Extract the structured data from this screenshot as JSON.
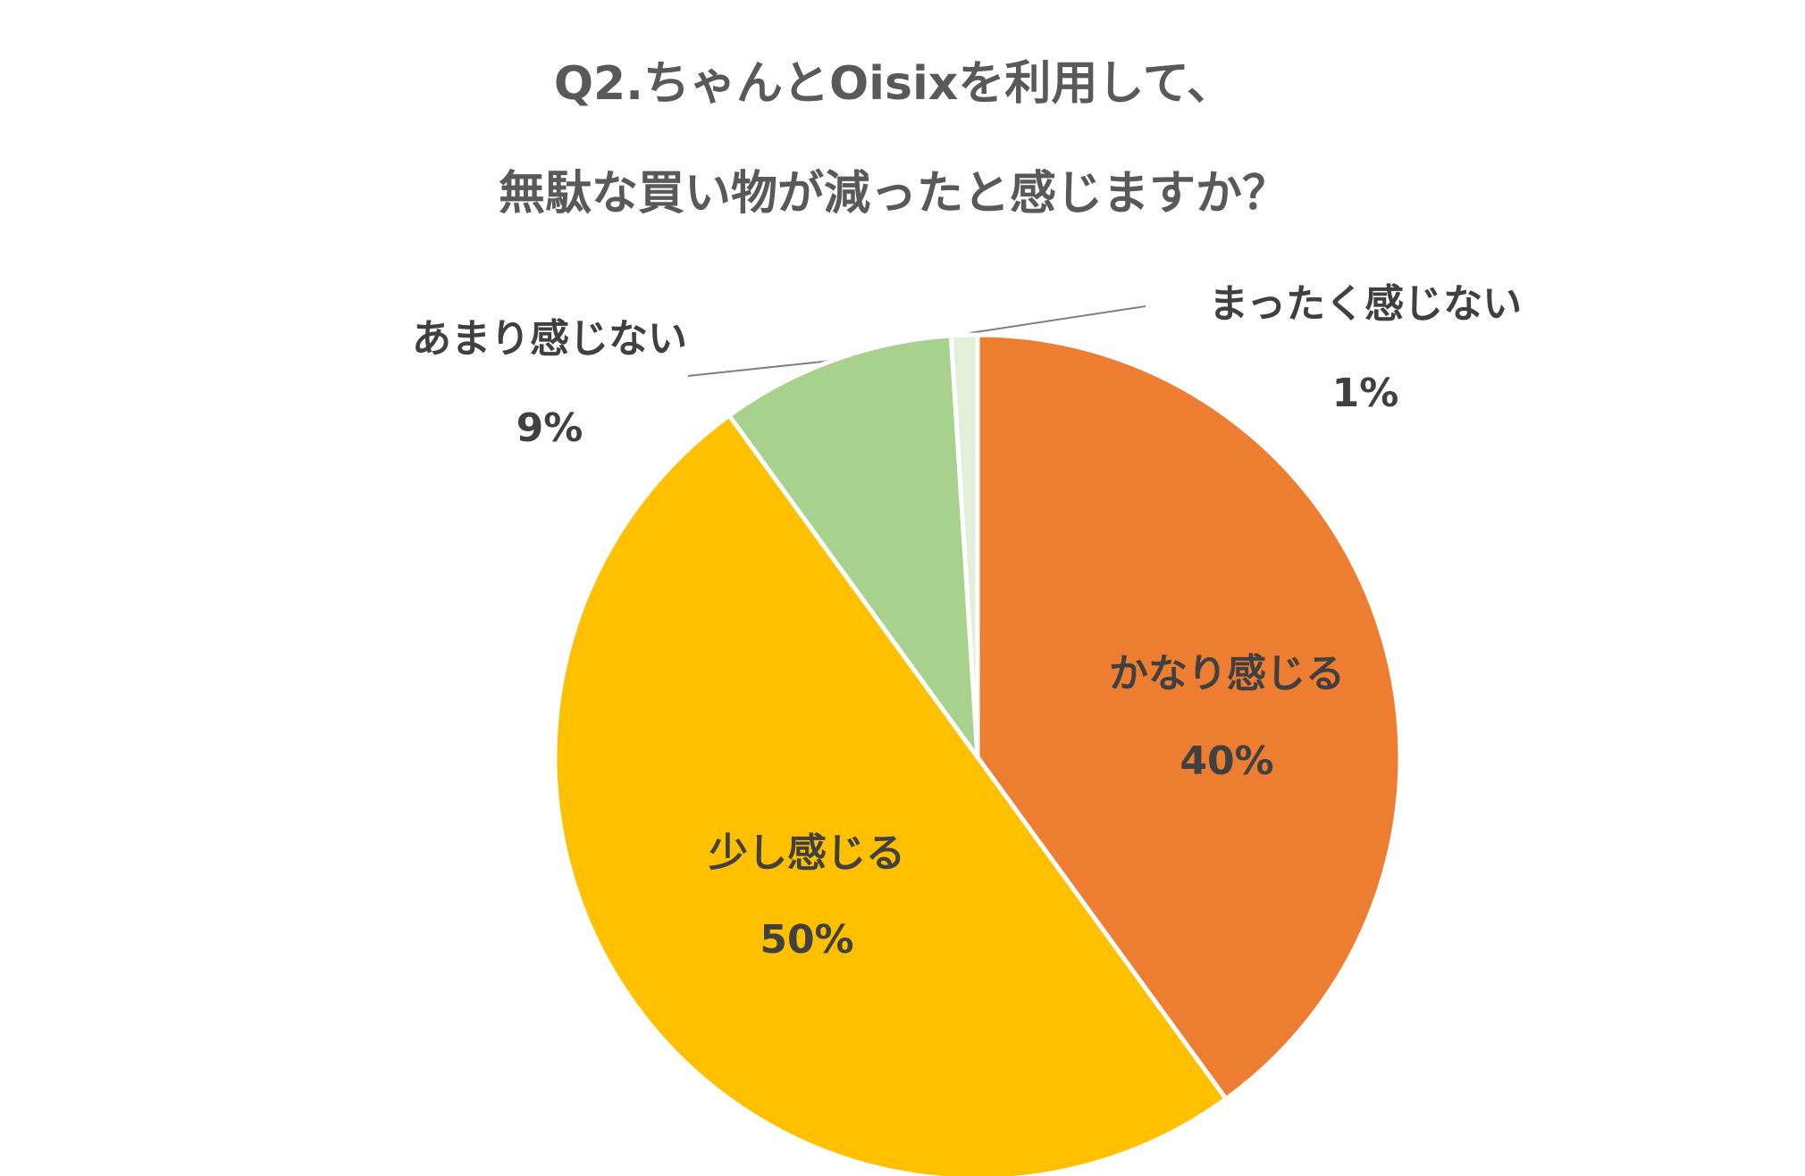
{
  "chart_data": {
    "type": "pie",
    "title": [
      "Q2.ちゃんとOisixを利用して、",
      "無駄な買い物が減ったと感じますか？"
    ],
    "categories": [
      "かなり感じる",
      "少し感じる",
      "あまり感じない",
      "まったく感じない"
    ],
    "values": [
      40,
      50,
      9,
      1
    ],
    "value_labels": [
      "40%",
      "50%",
      "9%",
      "1%"
    ],
    "colors": [
      "#ED7D31",
      "#FFC000",
      "#A9D18E",
      "#E2F0D9"
    ]
  }
}
